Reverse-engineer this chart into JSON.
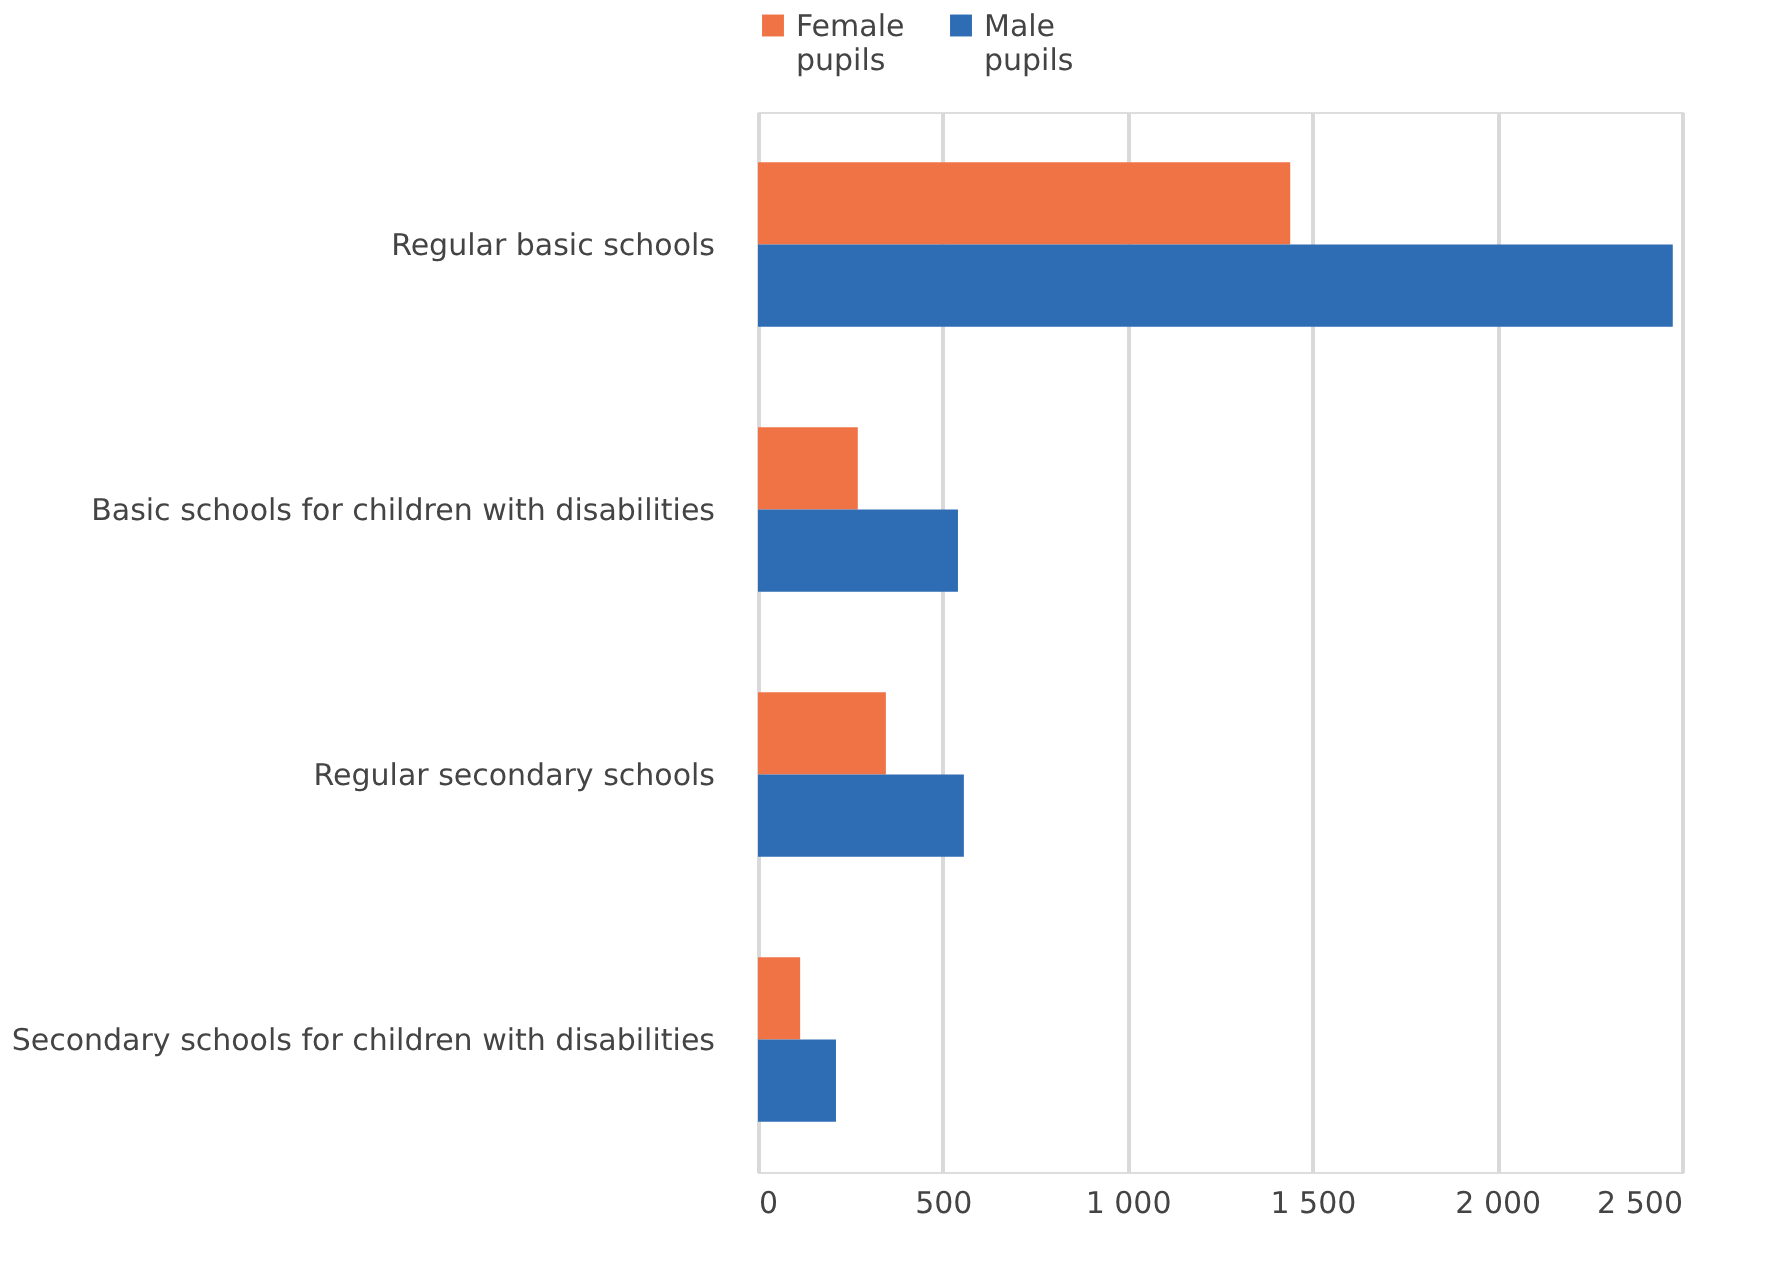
{
  "chart_data": {
    "type": "bar",
    "orientation": "horizontal",
    "categories": [
      "Regular basic schools",
      "Basic schools for children with disabilities",
      "Regular secondary schools",
      "Secondary schools for children with disabilities"
    ],
    "series": [
      {
        "name": "Female pupils",
        "color": "#f07346",
        "values": [
          1440,
          270,
          346,
          114
        ]
      },
      {
        "name": "Male pupils",
        "color": "#2e6cb4",
        "values": [
          2475,
          541,
          557,
          211
        ]
      }
    ],
    "xlim": [
      0,
      2500
    ],
    "xticks": [
      0,
      500,
      {
        "value": 1000,
        "label": "1 000"
      },
      {
        "value": 1500,
        "label": "1 500"
      },
      {
        "value": 2000,
        "label": "2 000"
      },
      {
        "value": 2500,
        "label": "2 500"
      }
    ],
    "grid": "x",
    "legend": "top"
  }
}
